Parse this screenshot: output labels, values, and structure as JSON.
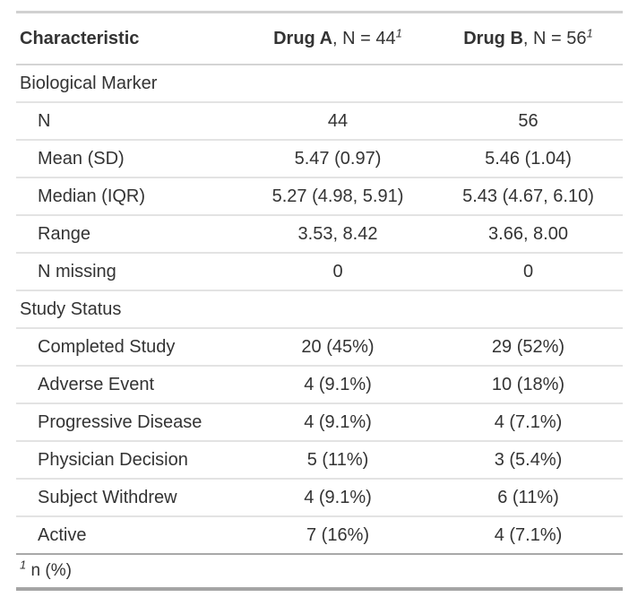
{
  "style": {
    "background": "#ffffff",
    "text_color": "#333333",
    "border_top_color": "#d1d1d1",
    "header_rule_color": "#d4d4d4",
    "row_rule_color": "#e3e3e3",
    "footnote_rule_color": "#a8a8a8",
    "bottom_border_color": "#a5a5a5"
  },
  "table": {
    "header": {
      "characteristic": "Characteristic",
      "columns": [
        {
          "drug": "Drug A",
          "suffix": ", N = 44",
          "footnote_marker": "1"
        },
        {
          "drug": "Drug B",
          "suffix": ", N = 56",
          "footnote_marker": "1"
        }
      ]
    },
    "sections": [
      {
        "label": "Biological Marker",
        "rows": [
          {
            "label": "N",
            "drug_a": "44",
            "drug_b": "56"
          },
          {
            "label": "Mean (SD)",
            "drug_a": "5.47 (0.97)",
            "drug_b": "5.46 (1.04)"
          },
          {
            "label": "Median (IQR)",
            "drug_a": "5.27 (4.98, 5.91)",
            "drug_b": "5.43 (4.67, 6.10)"
          },
          {
            "label": "Range",
            "drug_a": "3.53, 8.42",
            "drug_b": "3.66, 8.00"
          },
          {
            "label": "N missing",
            "drug_a": "0",
            "drug_b": "0"
          }
        ]
      },
      {
        "label": "Study Status",
        "rows": [
          {
            "label": "Completed Study",
            "drug_a": "20 (45%)",
            "drug_b": "29 (52%)"
          },
          {
            "label": "Adverse Event",
            "drug_a": "4 (9.1%)",
            "drug_b": "10 (18%)"
          },
          {
            "label": "Progressive Disease",
            "drug_a": "4 (9.1%)",
            "drug_b": "4 (7.1%)"
          },
          {
            "label": "Physician Decision",
            "drug_a": "5 (11%)",
            "drug_b": "3 (5.4%)"
          },
          {
            "label": "Subject Withdrew",
            "drug_a": "4 (9.1%)",
            "drug_b": "6 (11%)"
          },
          {
            "label": "Active",
            "drug_a": "7 (16%)",
            "drug_b": "4 (7.1%)"
          }
        ]
      }
    ],
    "footnote": {
      "marker": "1",
      "text": "n (%)"
    }
  }
}
